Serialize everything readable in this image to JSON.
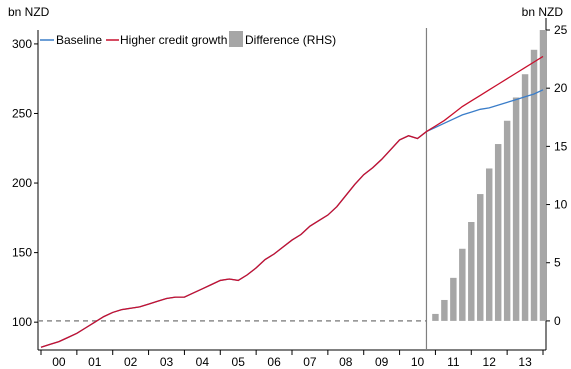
{
  "chart_data": {
    "type": "line+bar",
    "left_axis_unit": "bn NZD",
    "right_axis_unit": "bn NZD",
    "left_ylim": [
      80,
      310
    ],
    "right_ylim": [
      -2.5,
      25
    ],
    "left_ticks": [
      "100",
      "150",
      "200",
      "250",
      "300"
    ],
    "left_tick_values": [
      100,
      150,
      200,
      250,
      300
    ],
    "right_ticks": [
      "0",
      "5",
      "10",
      "15",
      "20",
      "25"
    ],
    "right_tick_values": [
      0,
      5,
      10,
      15,
      20,
      25
    ],
    "x_range": [
      0,
      56
    ],
    "x_categories": [
      "00",
      "01",
      "02",
      "03",
      "04",
      "05",
      "06",
      "07",
      "08",
      "09",
      "10",
      "11",
      "12",
      "13"
    ],
    "forecast_start_x": 43,
    "legend": [
      "Baseline",
      "Higher credit growth",
      "Difference (RHS)"
    ],
    "colors": {
      "baseline": "#3a7dc9",
      "higher": "#c8102e",
      "difference": "#a6a6a6",
      "zero_line": "#8c8c8c"
    },
    "series": [
      {
        "name": "Baseline",
        "axis": "left",
        "x": [
          0,
          1,
          2,
          3,
          4,
          5,
          6,
          7,
          8,
          9,
          10,
          11,
          12,
          13,
          14,
          15,
          16,
          17,
          18,
          19,
          20,
          21,
          22,
          23,
          24,
          25,
          26,
          27,
          28,
          29,
          30,
          31,
          32,
          33,
          34,
          35,
          36,
          37,
          38,
          39,
          40,
          41,
          42,
          43,
          44,
          45,
          46,
          47,
          48,
          49,
          50,
          51,
          52,
          53,
          54,
          55,
          56
        ],
        "values": [
          82,
          84,
          86,
          89,
          92,
          96,
          100,
          104,
          107,
          109,
          110,
          111,
          113,
          115,
          117,
          118,
          118,
          121,
          124,
          127,
          130,
          131,
          130,
          134,
          139,
          145,
          149,
          154,
          159,
          163,
          169,
          173,
          177,
          183,
          191,
          199,
          206,
          211,
          217,
          224,
          231,
          234,
          232,
          237,
          240,
          243,
          246,
          249,
          251,
          253,
          254,
          256,
          258,
          260,
          262,
          264,
          267
        ]
      },
      {
        "name": "Higher credit growth",
        "axis": "left",
        "x": [
          0,
          1,
          2,
          3,
          4,
          5,
          6,
          7,
          8,
          9,
          10,
          11,
          12,
          13,
          14,
          15,
          16,
          17,
          18,
          19,
          20,
          21,
          22,
          23,
          24,
          25,
          26,
          27,
          28,
          29,
          30,
          31,
          32,
          33,
          34,
          35,
          36,
          37,
          38,
          39,
          40,
          41,
          42,
          43,
          44,
          45,
          46,
          47,
          48,
          49,
          50,
          51,
          52,
          53,
          54,
          55,
          56
        ],
        "values": [
          82,
          84,
          86,
          89,
          92,
          96,
          100,
          104,
          107,
          109,
          110,
          111,
          113,
          115,
          117,
          118,
          118,
          121,
          124,
          127,
          130,
          131,
          130,
          134,
          139,
          145,
          149,
          154,
          159,
          163,
          169,
          173,
          177,
          183,
          191,
          199,
          206,
          211,
          217,
          224,
          231,
          234,
          232,
          237,
          241,
          245,
          250,
          255,
          259,
          263,
          267,
          271,
          275,
          279,
          283,
          287,
          291
        ]
      },
      {
        "name": "Difference (RHS)",
        "axis": "right",
        "type": "bar",
        "x": [
          44,
          45,
          46,
          47,
          48,
          49,
          50,
          51,
          52,
          53,
          54,
          55,
          56
        ],
        "values": [
          0.6,
          1.8,
          3.7,
          6.2,
          8.5,
          10.9,
          13.1,
          15.2,
          17.2,
          19.2,
          21.2,
          23.3,
          25.0
        ]
      }
    ]
  }
}
